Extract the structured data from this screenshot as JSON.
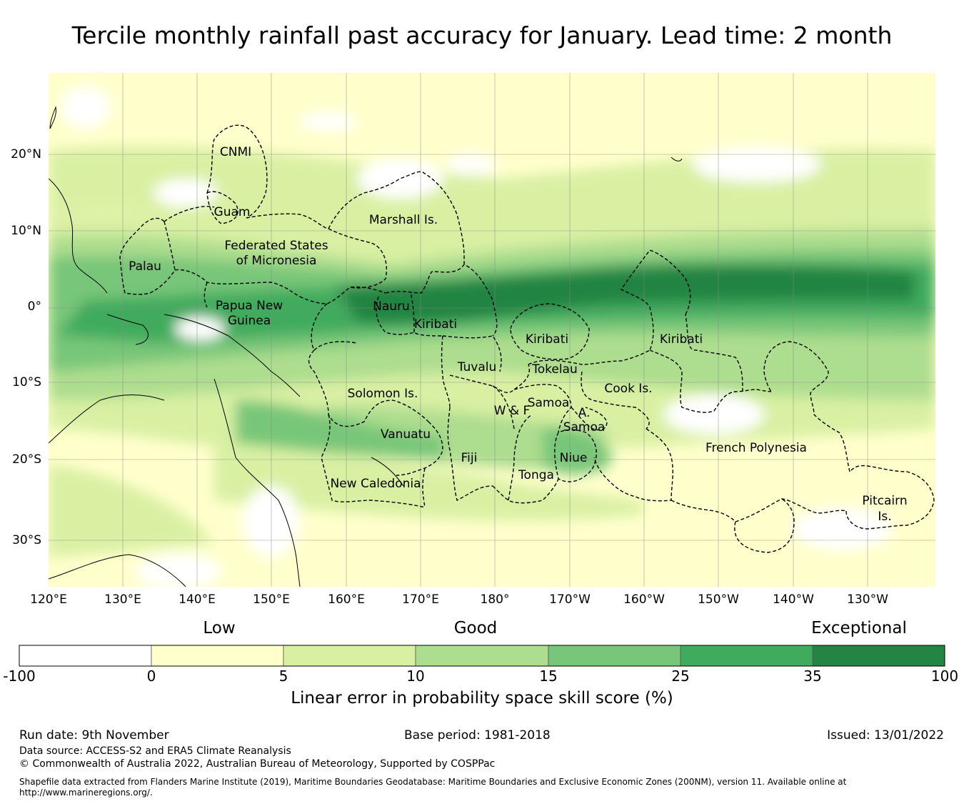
{
  "title": "Tercile monthly rainfall past accuracy for January. Lead time: 2 month",
  "map": {
    "lon_labels": [
      "120°E",
      "130°E",
      "140°E",
      "150°E",
      "160°E",
      "170°E",
      "180°",
      "170°W",
      "160°W",
      "150°W",
      "140°W",
      "130°W"
    ],
    "lat_labels": [
      "20°N",
      "10°N",
      "0°",
      "10°S",
      "20°S",
      "30°S"
    ],
    "regions": [
      {
        "name": "CNMI"
      },
      {
        "name": "Guam"
      },
      {
        "name": "Marshall Is."
      },
      {
        "name": "Federated States"
      },
      {
        "name": "of Micronesia"
      },
      {
        "name": "Palau"
      },
      {
        "name": "Papua New"
      },
      {
        "name": "Guinea"
      },
      {
        "name": "Nauru"
      },
      {
        "name": "Kiribati"
      },
      {
        "name": "Kiribati"
      },
      {
        "name": "Kiribati"
      },
      {
        "name": "Tuvalu"
      },
      {
        "name": "Tokelau"
      },
      {
        "name": "Cook Is."
      },
      {
        "name": "Solomon Is."
      },
      {
        "name": "W & F"
      },
      {
        "name": "Samoa"
      },
      {
        "name": "A."
      },
      {
        "name": "Samoa"
      },
      {
        "name": "Vanuatu"
      },
      {
        "name": "Fiji"
      },
      {
        "name": "Niue"
      },
      {
        "name": "Tonga"
      },
      {
        "name": "French Polynesia"
      },
      {
        "name": "New Caledonia"
      },
      {
        "name": "Pitcairn"
      },
      {
        "name": "Is."
      }
    ]
  },
  "colorbar": {
    "categories": [
      "Low",
      "Good",
      "Exceptional"
    ],
    "ticks": [
      "-100",
      "0",
      "5",
      "10",
      "15",
      "25",
      "35",
      "100"
    ],
    "colors": [
      "#ffffff",
      "#ffffcc",
      "#d9f0a3",
      "#addd8e",
      "#78c679",
      "#41ab5d",
      "#238443"
    ],
    "label": "Linear error in probability space skill score (%)"
  },
  "footer": {
    "run_date": "Run date: 9th November",
    "base_period": "Base period: 1981-2018",
    "issued": "Issued: 13/01/2022",
    "data_source": "Data source: ACCESS-S2 and ERA5 Climate Reanalysis",
    "copyright": "© Commonwealth of Australia 2022, Australian Bureau of Meteorology, Supported by COSPPac",
    "shapefile_line1": "Shapefile data extracted from Flanders Marine Institute (2019), Maritime Boundaries Geodatabase: Maritime Boundaries and Exclusive Economic Zones (200NM), version 11. Available online at",
    "shapefile_line2": "http://www.marineregions.org/."
  }
}
